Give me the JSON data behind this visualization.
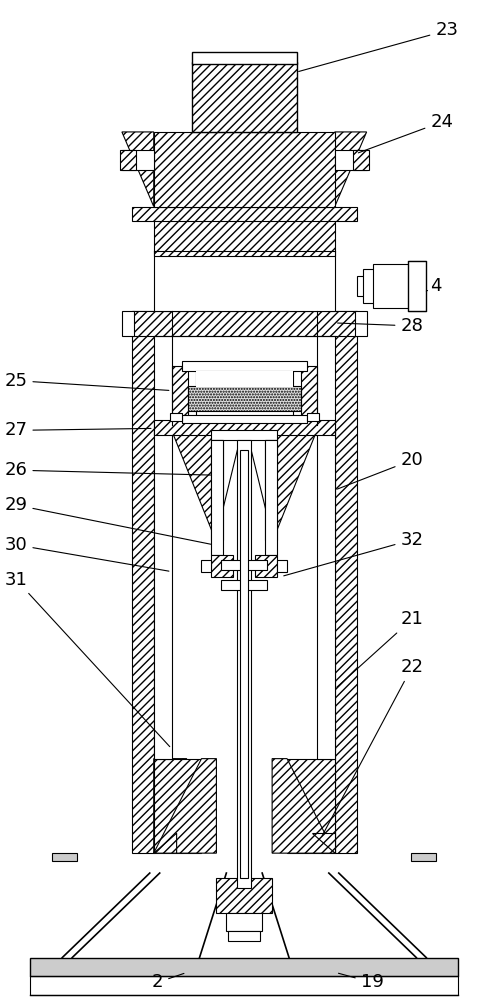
{
  "fig_width": 4.86,
  "fig_height": 10.0,
  "dpi": 100,
  "bg_color": "#ffffff"
}
